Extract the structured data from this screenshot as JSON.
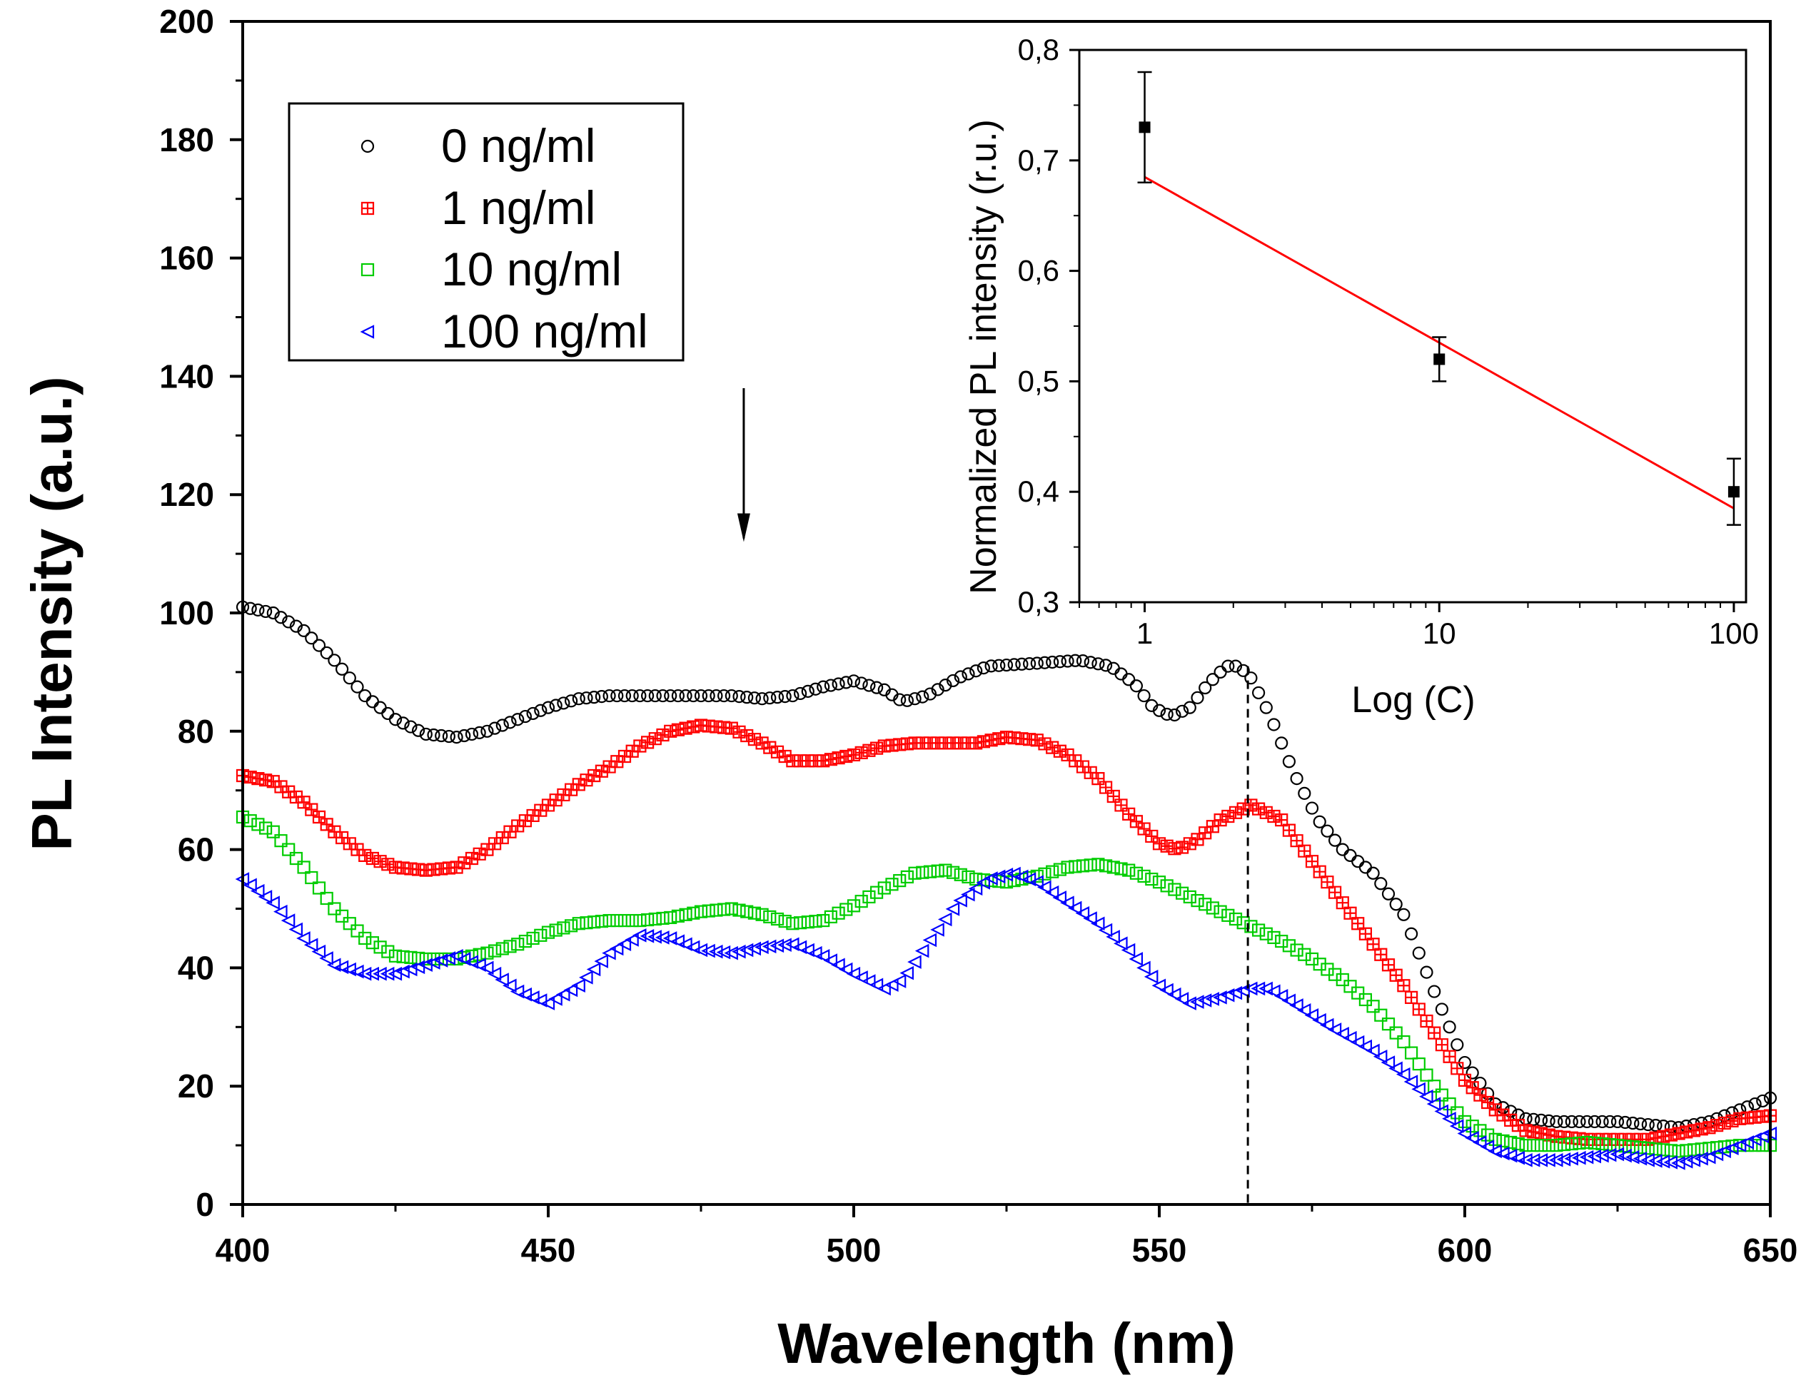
{
  "chart_data": [
    {
      "type": "scatter",
      "title": "",
      "xlabel": "Wavelength (nm)",
      "ylabel": "PL Intensity (a.u.)",
      "xlim": [
        400,
        650
      ],
      "ylim": [
        0,
        200
      ],
      "x_ticks": [
        400,
        450,
        500,
        550,
        600,
        650
      ],
      "y_ticks": [
        0,
        20,
        40,
        60,
        80,
        100,
        120,
        140,
        160,
        180,
        200
      ],
      "legend": "top-left",
      "grid": false,
      "annotations": {
        "arrow": {
          "x": 482,
          "y_from": 138,
          "y_to": 112,
          "direction": "down",
          "color": "#000000"
        },
        "dashed_line": {
          "x": 564.5,
          "y_from": 0,
          "y_to": 91,
          "color": "#000000"
        }
      },
      "series": [
        {
          "name": "0 ng/ml",
          "marker": "circle",
          "color": "#000000",
          "points": [
            [
              400,
              101
            ],
            [
              405,
              100
            ],
            [
              410,
              97
            ],
            [
              415,
              92
            ],
            [
              420,
              86
            ],
            [
              425,
              82
            ],
            [
              430,
              79.5
            ],
            [
              435,
              79
            ],
            [
              440,
              80
            ],
            [
              445,
              82
            ],
            [
              450,
              84
            ],
            [
              455,
              85.5
            ],
            [
              460,
              86
            ],
            [
              465,
              86
            ],
            [
              470,
              86
            ],
            [
              475,
              86
            ],
            [
              480,
              86
            ],
            [
              485,
              85.5
            ],
            [
              490,
              86
            ],
            [
              495,
              87.5
            ],
            [
              500,
              88.5
            ],
            [
              505,
              87
            ],
            [
              508,
              85
            ],
            [
              512,
              86
            ],
            [
              517,
              89
            ],
            [
              522,
              91
            ],
            [
              530,
              91.5
            ],
            [
              537,
              92
            ],
            [
              542,
              91
            ],
            [
              546,
              88
            ],
            [
              549,
              84
            ],
            [
              552,
              82.5
            ],
            [
              555,
              84
            ],
            [
              558,
              88
            ],
            [
              561,
              91
            ],
            [
              563,
              91
            ],
            [
              565,
              89
            ],
            [
              568,
              83
            ],
            [
              572,
              73
            ],
            [
              576,
              65
            ],
            [
              580,
              60
            ],
            [
              585,
              56
            ],
            [
              590,
              49
            ],
            [
              595,
              36
            ],
            [
              600,
              24
            ],
            [
              605,
              17
            ],
            [
              610,
              14.5
            ],
            [
              615,
              14
            ],
            [
              620,
              14
            ],
            [
              625,
              14
            ],
            [
              630,
              13.5
            ],
            [
              635,
              13
            ],
            [
              640,
              14
            ],
            [
              645,
              16
            ],
            [
              650,
              18
            ]
          ]
        },
        {
          "name": "1 ng/ml",
          "marker": "square-cross",
          "color": "#ff0000",
          "points": [
            [
              400,
              72.5
            ],
            [
              405,
              71.5
            ],
            [
              410,
              68
            ],
            [
              415,
              63
            ],
            [
              420,
              59
            ],
            [
              425,
              57
            ],
            [
              430,
              56.5
            ],
            [
              435,
              57
            ],
            [
              440,
              60
            ],
            [
              445,
              64
            ],
            [
              450,
              67.5
            ],
            [
              455,
              71
            ],
            [
              460,
              74
            ],
            [
              465,
              77.5
            ],
            [
              470,
              80
            ],
            [
              475,
              81
            ],
            [
              480,
              80.5
            ],
            [
              485,
              78
            ],
            [
              490,
              75
            ],
            [
              495,
              75
            ],
            [
              500,
              76
            ],
            [
              505,
              77.5
            ],
            [
              510,
              78
            ],
            [
              515,
              78
            ],
            [
              520,
              78
            ],
            [
              525,
              79
            ],
            [
              530,
              78.5
            ],
            [
              535,
              76
            ],
            [
              540,
              72
            ],
            [
              545,
              66
            ],
            [
              550,
              61
            ],
            [
              553,
              60
            ],
            [
              556,
              61.5
            ],
            [
              560,
              65
            ],
            [
              565,
              67.5
            ],
            [
              570,
              65
            ],
            [
              575,
              58
            ],
            [
              580,
              51
            ],
            [
              585,
              44
            ],
            [
              590,
              37
            ],
            [
              595,
              29
            ],
            [
              600,
              21
            ],
            [
              605,
              16
            ],
            [
              610,
              12.5
            ],
            [
              615,
              11.5
            ],
            [
              620,
              11
            ],
            [
              625,
              11
            ],
            [
              630,
              11
            ],
            [
              635,
              12
            ],
            [
              640,
              13
            ],
            [
              645,
              14.5
            ],
            [
              650,
              15
            ]
          ]
        },
        {
          "name": "10 ng/ml",
          "marker": "square",
          "color": "#00cc00",
          "points": [
            [
              400,
              65.5
            ],
            [
              405,
              63
            ],
            [
              410,
              57
            ],
            [
              415,
              50
            ],
            [
              420,
              45
            ],
            [
              425,
              42
            ],
            [
              430,
              41.5
            ],
            [
              435,
              41.5
            ],
            [
              440,
              42.5
            ],
            [
              445,
              44
            ],
            [
              450,
              46
            ],
            [
              455,
              47.5
            ],
            [
              460,
              48
            ],
            [
              465,
              48
            ],
            [
              470,
              48.5
            ],
            [
              475,
              49.5
            ],
            [
              480,
              50
            ],
            [
              485,
              49
            ],
            [
              490,
              47.5
            ],
            [
              495,
              48
            ],
            [
              500,
              50.5
            ],
            [
              505,
              53.5
            ],
            [
              510,
              56
            ],
            [
              515,
              56.5
            ],
            [
              520,
              55
            ],
            [
              525,
              54.5
            ],
            [
              530,
              55.5
            ],
            [
              535,
              57
            ],
            [
              540,
              57.5
            ],
            [
              545,
              56.5
            ],
            [
              550,
              54.5
            ],
            [
              555,
              52
            ],
            [
              560,
              49.5
            ],
            [
              565,
              47
            ],
            [
              570,
              44.5
            ],
            [
              575,
              41.5
            ],
            [
              580,
              38
            ],
            [
              585,
              33.5
            ],
            [
              590,
              27.5
            ],
            [
              595,
              20
            ],
            [
              600,
              14
            ],
            [
              605,
              11
            ],
            [
              610,
              10
            ],
            [
              615,
              10
            ],
            [
              620,
              10.5
            ],
            [
              625,
              10
            ],
            [
              630,
              9.5
            ],
            [
              635,
              9
            ],
            [
              640,
              9.5
            ],
            [
              645,
              10
            ],
            [
              650,
              10
            ]
          ]
        },
        {
          "name": "100 ng/ml",
          "marker": "triangle-left",
          "color": "#0000ff",
          "points": [
            [
              400,
              55
            ],
            [
              405,
              51
            ],
            [
              410,
              45
            ],
            [
              415,
              40.5
            ],
            [
              420,
              39
            ],
            [
              425,
              39
            ],
            [
              430,
              40.5
            ],
            [
              435,
              42
            ],
            [
              440,
              40
            ],
            [
              445,
              36
            ],
            [
              450,
              34
            ],
            [
              455,
              37
            ],
            [
              460,
              42.5
            ],
            [
              465,
              45.5
            ],
            [
              470,
              45
            ],
            [
              475,
              43
            ],
            [
              480,
              42.5
            ],
            [
              485,
              43.5
            ],
            [
              490,
              44
            ],
            [
              495,
              42
            ],
            [
              500,
              39
            ],
            [
              505,
              36.5
            ],
            [
              508,
              38
            ],
            [
              512,
              44
            ],
            [
              517,
              51
            ],
            [
              522,
              55
            ],
            [
              526,
              56
            ],
            [
              530,
              54.5
            ],
            [
              535,
              51
            ],
            [
              540,
              47.5
            ],
            [
              545,
              43
            ],
            [
              550,
              37
            ],
            [
              555,
              34
            ],
            [
              560,
              35
            ],
            [
              565,
              36.5
            ],
            [
              568,
              36.5
            ],
            [
              572,
              34
            ],
            [
              578,
              30
            ],
            [
              585,
              26
            ],
            [
              590,
              22
            ],
            [
              595,
              17
            ],
            [
              600,
              12
            ],
            [
              605,
              9
            ],
            [
              610,
              7.5
            ],
            [
              615,
              7.5
            ],
            [
              620,
              8
            ],
            [
              625,
              8.5
            ],
            [
              630,
              7.5
            ],
            [
              635,
              7
            ],
            [
              640,
              8
            ],
            [
              645,
              10
            ],
            [
              650,
              12
            ]
          ]
        }
      ]
    },
    {
      "type": "scatter",
      "title": "",
      "xlabel": "Log (C)",
      "ylabel": "Normalized PL intensity (r.u.)",
      "x_scale": "log",
      "xlim": [
        0.6,
        110
      ],
      "ylim": [
        0.3,
        0.8
      ],
      "x_ticks": [
        1,
        10,
        100
      ],
      "y_ticks": [
        "0,3",
        "0,4",
        "0,5",
        "0,6",
        "0,7",
        "0,8"
      ],
      "grid": false,
      "points": [
        {
          "x": 1,
          "y": 0.73,
          "err": 0.05
        },
        {
          "x": 10,
          "y": 0.52,
          "err": 0.02
        },
        {
          "x": 100,
          "y": 0.4,
          "err": 0.03
        }
      ],
      "fit_line": {
        "x1": 1,
        "y1": 0.685,
        "x2": 100,
        "y2": 0.385,
        "color": "#ff0000"
      }
    }
  ]
}
